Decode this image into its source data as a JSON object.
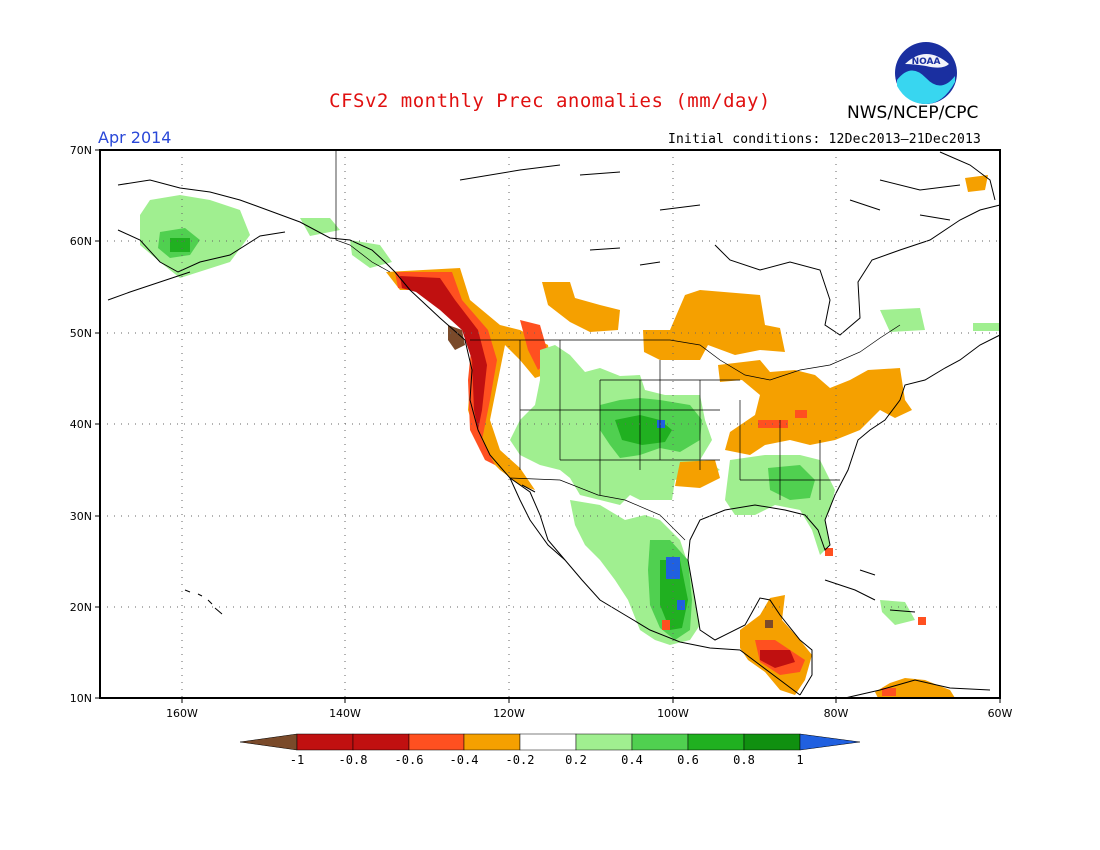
{
  "title": "CFSv2 monthly Prec anomalies (mm/day)",
  "organization": "NWS/NCEP/CPC",
  "logo_text": "NOAA",
  "valid_month": "Apr 2014",
  "initial_conditions": "Initial conditions: 12Dec2013–21Dec2013",
  "map": {
    "lat_labels": [
      "70N",
      "60N",
      "50N",
      "40N",
      "30N",
      "20N",
      "10N"
    ],
    "lon_labels": [
      "160W",
      "140W",
      "120W",
      "100W",
      "80W",
      "60W"
    ],
    "extent": {
      "lon_min": -170,
      "lon_max": -60,
      "lat_min": 10,
      "lat_max": 70
    },
    "gridlines": true
  },
  "colorbar": {
    "tick_labels": [
      "-1",
      "-0.8",
      "-0.6",
      "-0.4",
      "-0.2",
      "0.2",
      "0.4",
      "0.6",
      "0.8",
      "1"
    ],
    "colors": [
      "#7a4a2a",
      "#c01010",
      "#ff5020",
      "#f5a000",
      "#ffffff",
      "#a0ef90",
      "#50d050",
      "#20b020",
      "#109010",
      "#2060e0"
    ]
  },
  "anomaly_palette": {
    "dry_strong": "#7a4a2a",
    "dry_08": "#c01010",
    "dry_06": "#ff5020",
    "dry_04": "#f5a000",
    "wet_02": "#a0ef90",
    "wet_04": "#50d050",
    "wet_06": "#20b020",
    "wet_08": "#109010",
    "wet_strong": "#2060e0"
  }
}
